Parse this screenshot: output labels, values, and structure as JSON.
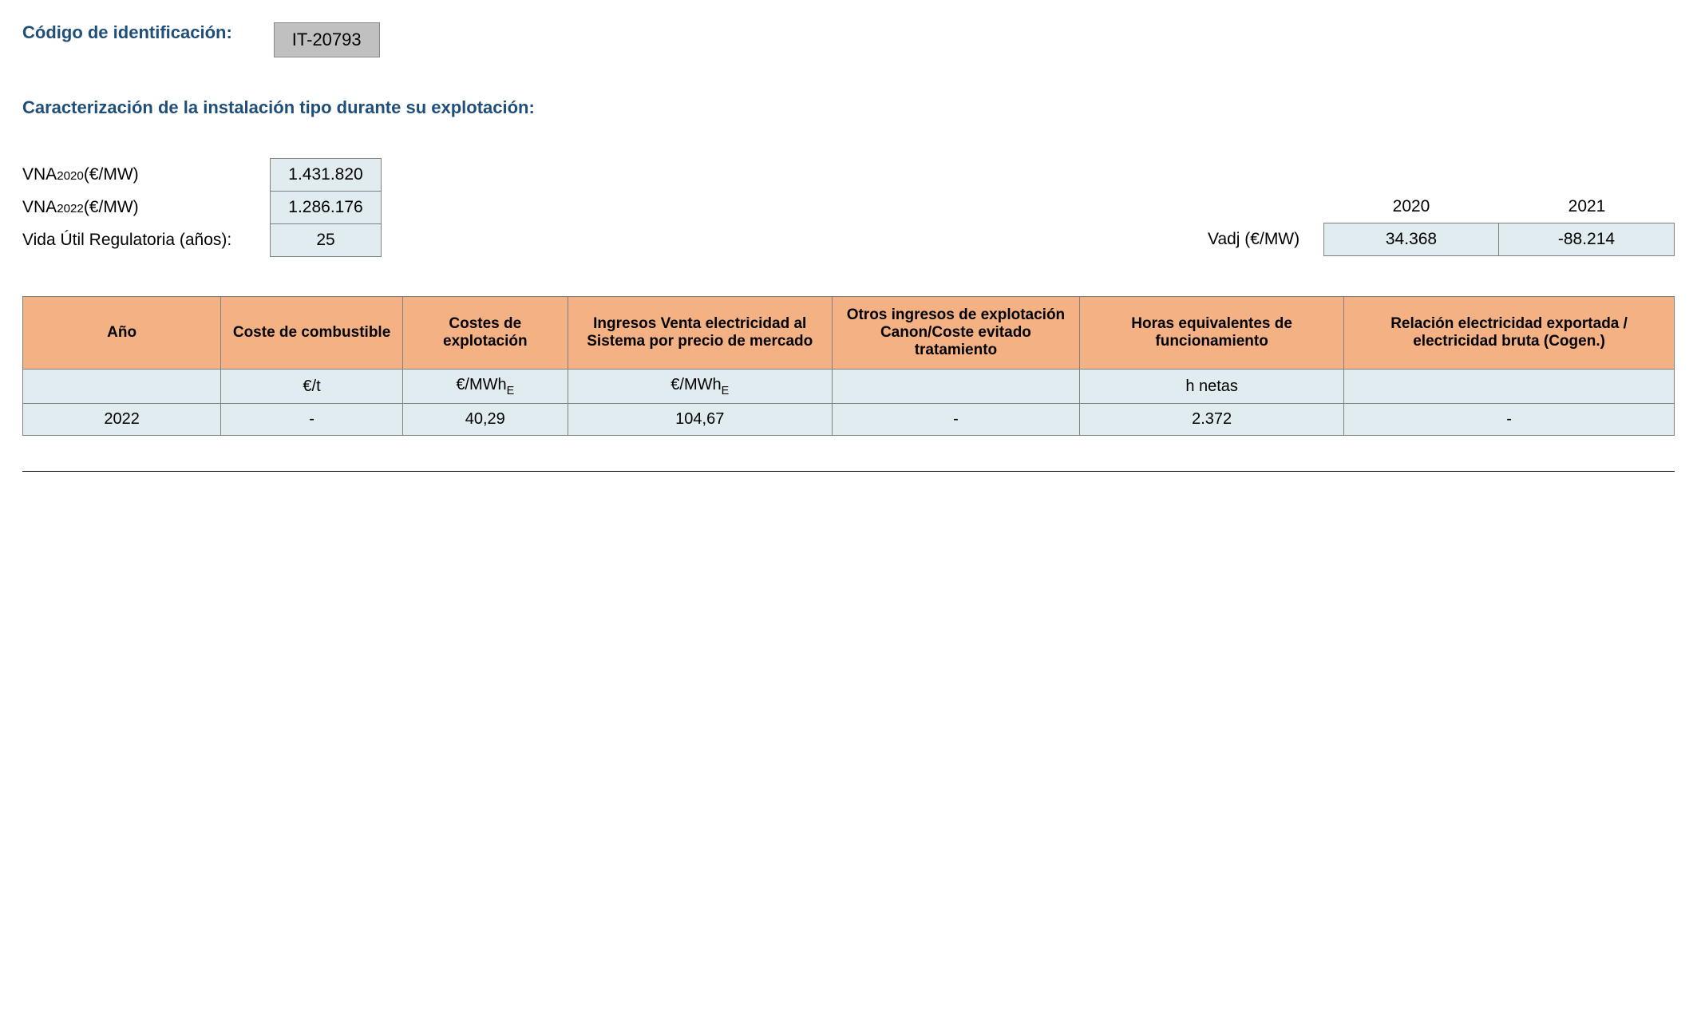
{
  "header": {
    "id_label": "Código de identificación:",
    "id_value": "IT-20793",
    "section_title": "Caracterización de la instalación tipo durante su explotación:"
  },
  "params": {
    "vna2020": {
      "label_pre": "VNA",
      "label_sub": "2020",
      "label_post": " (€/MW)",
      "value": "1.431.820"
    },
    "vna2022": {
      "label_pre": "VNA",
      "label_sub": "2022",
      "label_post": " (€/MW)",
      "value": "1.286.176"
    },
    "vida": {
      "label": "Vida Útil Regulatoria (años):",
      "value": "25"
    }
  },
  "vadj": {
    "label": "Vadj (€/MW)",
    "years": [
      "2020",
      "2021"
    ],
    "values": [
      "34.368",
      "-88.214"
    ]
  },
  "table": {
    "headers": {
      "ano": "Año",
      "combustible": "Coste de combustible",
      "explotacion": "Costes de explotación",
      "ingresos_venta": "Ingresos Venta electricidad al Sistema por precio de mercado",
      "otros_ingresos": "Otros ingresos de explotación Canon/Coste evitado tratamiento",
      "horas": "Horas equivalentes de funcionamiento",
      "relacion": "Relación electricidad exportada / electricidad bruta (Cogen.)"
    },
    "units": {
      "ano": "",
      "combustible": "€/t",
      "explotacion_pre": "€/MWh",
      "explotacion_sub": "E",
      "ingresos_pre": "€/MWh",
      "ingresos_sub": "E",
      "otros_ingresos": "",
      "horas": "h netas",
      "relacion": ""
    },
    "row": {
      "ano": "2022",
      "combustible": "-",
      "explotacion": "40,29",
      "ingresos_venta": "104,67",
      "otros_ingresos": "-",
      "horas": "2.372",
      "relacion": "-"
    },
    "colors": {
      "header_bg": "#f4b183",
      "cell_bg": "#e0ecf0",
      "border": "#808080"
    }
  }
}
